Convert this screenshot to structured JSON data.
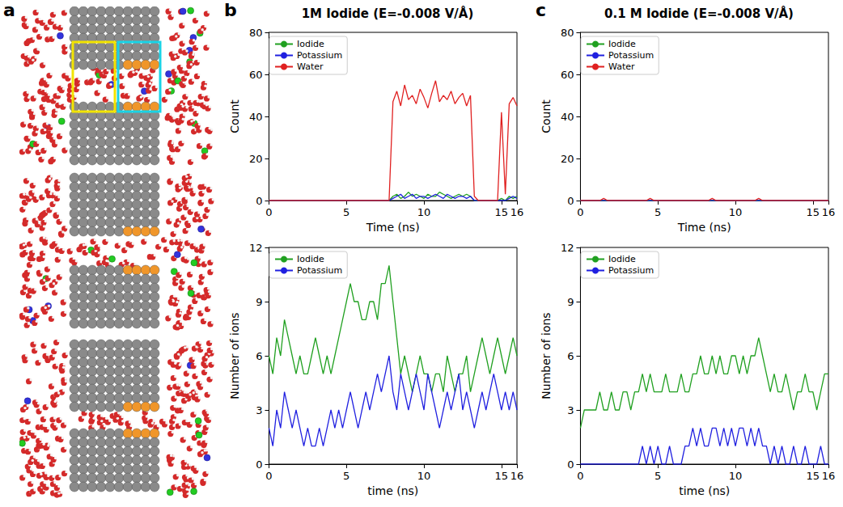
{
  "snapshots": {
    "label": "a"
  },
  "chart_data": [
    {
      "type": "line",
      "panel_label": "b",
      "title": "1M Iodide (E=-0.008 V/Å)",
      "xlabel": "Time (ns)",
      "ylabel": "Count",
      "xlim": [
        0,
        16
      ],
      "ylim": [
        0,
        80
      ],
      "xticks": [
        0,
        5,
        10,
        15
      ],
      "yticks": [
        0,
        20,
        40,
        60,
        80
      ],
      "grid": false,
      "legend": "upper left",
      "line_style": "solid",
      "x": [
        0,
        0.25,
        0.5,
        0.75,
        1,
        1.25,
        1.5,
        1.75,
        2,
        2.25,
        2.5,
        2.75,
        3,
        3.25,
        3.5,
        3.75,
        4,
        4.25,
        4.5,
        4.75,
        5,
        5.25,
        5.5,
        5.75,
        6,
        6.25,
        6.5,
        6.75,
        7,
        7.25,
        7.5,
        7.75,
        8,
        8.25,
        8.5,
        8.75,
        9,
        9.25,
        9.5,
        9.75,
        10,
        10.25,
        10.5,
        10.75,
        11,
        11.25,
        11.5,
        11.75,
        12,
        12.25,
        12.5,
        12.75,
        13,
        13.25,
        13.5,
        13.75,
        14,
        14.25,
        14.5,
        14.75,
        15,
        15.25,
        15.5,
        15.75,
        16
      ],
      "series": [
        {
          "name": "Iodide",
          "color": "#20a020",
          "values": [
            0,
            0,
            0,
            0,
            0,
            0,
            0,
            0,
            0,
            0,
            0,
            0,
            0,
            0,
            0,
            0,
            0,
            0,
            0,
            0,
            0,
            0,
            0,
            0,
            0,
            0,
            0,
            0,
            0,
            0,
            0,
            0,
            2,
            3,
            1,
            2,
            4,
            2,
            3,
            2,
            1,
            3,
            2,
            2,
            4,
            3,
            2,
            1,
            2,
            3,
            2,
            3,
            2,
            0,
            0,
            0,
            0,
            0,
            0,
            0,
            1,
            0,
            2,
            1,
            2
          ]
        },
        {
          "name": "Potassium",
          "color": "#2020e0",
          "values": [
            0,
            0,
            0,
            0,
            0,
            0,
            0,
            0,
            0,
            0,
            0,
            0,
            0,
            0,
            0,
            0,
            0,
            0,
            0,
            0,
            0,
            0,
            0,
            0,
            0,
            0,
            0,
            0,
            0,
            0,
            0,
            0,
            1,
            2,
            3,
            1,
            2,
            3,
            1,
            2,
            2,
            1,
            2,
            3,
            2,
            1,
            3,
            2,
            1,
            2,
            2,
            1,
            2,
            0,
            0,
            0,
            0,
            0,
            0,
            0,
            0,
            0,
            1,
            2,
            1
          ]
        },
        {
          "name": "Water",
          "color": "#e02020",
          "values": [
            0,
            0,
            0,
            0,
            0,
            0,
            0,
            0,
            0,
            0,
            0,
            0,
            0,
            0,
            0,
            0,
            0,
            0,
            0,
            0,
            0,
            0,
            0,
            0,
            0,
            0,
            0,
            0,
            0,
            0,
            0,
            0,
            47,
            52,
            45,
            55,
            48,
            50,
            46,
            53,
            49,
            44,
            51,
            57,
            47,
            50,
            48,
            52,
            46,
            49,
            51,
            45,
            50,
            2,
            0,
            0,
            0,
            0,
            0,
            0,
            42,
            3,
            46,
            49,
            45
          ]
        }
      ]
    },
    {
      "type": "line",
      "xlabel": "time (ns)",
      "ylabel": "Number of ions",
      "xlim": [
        0,
        16
      ],
      "ylim": [
        0,
        12
      ],
      "xticks": [
        0,
        5,
        10,
        15
      ],
      "yticks": [
        0,
        3,
        6,
        9,
        12
      ],
      "grid": false,
      "legend": "upper left",
      "line_style": "solid",
      "x": [
        0,
        0.25,
        0.5,
        0.75,
        1,
        1.25,
        1.5,
        1.75,
        2,
        2.25,
        2.5,
        2.75,
        3,
        3.25,
        3.5,
        3.75,
        4,
        4.25,
        4.5,
        4.75,
        5,
        5.25,
        5.5,
        5.75,
        6,
        6.25,
        6.5,
        6.75,
        7,
        7.25,
        7.5,
        7.75,
        8,
        8.25,
        8.5,
        8.75,
        9,
        9.25,
        9.5,
        9.75,
        10,
        10.25,
        10.5,
        10.75,
        11,
        11.25,
        11.5,
        11.75,
        12,
        12.25,
        12.5,
        12.75,
        13,
        13.25,
        13.5,
        13.75,
        14,
        14.25,
        14.5,
        14.75,
        15,
        15.25,
        15.5,
        15.75,
        16
      ],
      "series": [
        {
          "name": "Iodide",
          "color": "#20a020",
          "values": [
            6,
            5,
            7,
            6,
            8,
            7,
            6,
            5,
            6,
            5,
            5,
            6,
            7,
            6,
            5,
            6,
            5,
            6,
            7,
            8,
            9,
            10,
            9,
            9,
            8,
            8,
            9,
            9,
            8,
            10,
            10,
            11,
            9,
            7,
            5,
            6,
            5,
            4,
            5,
            6,
            5,
            5,
            4,
            5,
            5,
            4,
            6,
            5,
            4,
            5,
            5,
            6,
            4,
            5,
            6,
            7,
            6,
            5,
            6,
            7,
            6,
            5,
            6,
            7,
            6
          ]
        },
        {
          "name": "Potassium",
          "color": "#2020e0",
          "values": [
            2,
            1,
            3,
            2,
            4,
            3,
            2,
            3,
            2,
            1,
            2,
            1,
            1,
            2,
            1,
            2,
            3,
            2,
            3,
            2,
            3,
            4,
            3,
            2,
            3,
            4,
            3,
            4,
            5,
            4,
            5,
            6,
            4,
            3,
            5,
            4,
            3,
            4,
            5,
            4,
            3,
            5,
            4,
            3,
            2,
            3,
            4,
            3,
            4,
            5,
            3,
            4,
            3,
            2,
            3,
            4,
            3,
            4,
            5,
            4,
            3,
            4,
            3,
            4,
            3
          ]
        }
      ]
    },
    {
      "type": "line",
      "panel_label": "c",
      "title": "0.1 M Iodide (E=-0.008 V/Å)",
      "xlabel": "Time (ns)",
      "ylabel": "Count",
      "xlim": [
        0,
        16
      ],
      "ylim": [
        0,
        80
      ],
      "xticks": [
        0,
        5,
        10,
        15
      ],
      "yticks": [
        0,
        20,
        40,
        60,
        80
      ],
      "grid": false,
      "legend": "upper left",
      "line_style": "solid",
      "x": [
        0,
        0.25,
        0.5,
        0.75,
        1,
        1.25,
        1.5,
        1.75,
        2,
        2.25,
        2.5,
        2.75,
        3,
        3.25,
        3.5,
        3.75,
        4,
        4.25,
        4.5,
        4.75,
        5,
        5.25,
        5.5,
        5.75,
        6,
        6.25,
        6.5,
        6.75,
        7,
        7.25,
        7.5,
        7.75,
        8,
        8.25,
        8.5,
        8.75,
        9,
        9.25,
        9.5,
        9.75,
        10,
        10.25,
        10.5,
        10.75,
        11,
        11.25,
        11.5,
        11.75,
        12,
        12.25,
        12.5,
        12.75,
        13,
        13.25,
        13.5,
        13.75,
        14,
        14.25,
        14.5,
        14.75,
        15,
        15.25,
        15.5,
        15.75,
        16
      ],
      "series": [
        {
          "name": "Iodide",
          "color": "#20a020",
          "values": [
            0,
            0,
            0,
            0,
            0,
            0,
            0,
            0,
            0,
            0,
            0,
            0,
            0,
            0,
            0,
            0,
            0,
            0,
            0,
            0,
            0,
            0,
            0,
            0,
            0,
            0,
            0,
            0,
            0,
            0,
            0,
            0,
            0,
            0,
            0,
            0,
            0,
            0,
            0,
            0,
            0,
            0,
            0,
            0,
            0,
            0,
            0,
            0,
            0,
            0,
            0,
            0,
            0,
            0,
            0,
            0,
            0,
            0,
            0,
            0,
            0,
            0,
            0,
            0,
            0
          ]
        },
        {
          "name": "Potassium",
          "color": "#2020e0",
          "values": [
            0,
            0,
            0,
            0,
            0,
            0,
            0,
            0,
            0,
            0,
            0,
            0,
            0,
            0,
            0,
            0,
            0,
            0,
            0,
            0,
            0,
            0,
            0,
            0,
            0,
            0,
            0,
            0,
            0,
            0,
            0,
            0,
            0,
            0,
            0,
            0,
            0,
            0,
            0,
            0,
            0,
            0,
            0,
            0,
            0,
            0,
            0,
            0,
            0,
            0,
            0,
            0,
            0,
            0,
            0,
            0,
            0,
            0,
            0,
            0,
            0,
            0,
            0,
            0,
            0
          ]
        },
        {
          "name": "Water",
          "color": "#e02020",
          "values": [
            0,
            0,
            0,
            0,
            0,
            0,
            1,
            0,
            0,
            0,
            0,
            0,
            0,
            0,
            0,
            0,
            0,
            0,
            1,
            0,
            0,
            0,
            0,
            0,
            0,
            0,
            0,
            0,
            0,
            0,
            0,
            0,
            0,
            0,
            1,
            0,
            0,
            0,
            0,
            0,
            0,
            0,
            0,
            0,
            0,
            0,
            1,
            0,
            0,
            0,
            0,
            0,
            0,
            0,
            0,
            0,
            0,
            0,
            0,
            0,
            0,
            0,
            0,
            0,
            0
          ]
        }
      ]
    },
    {
      "type": "line",
      "xlabel": "time (ns)",
      "ylabel": "Number of ions",
      "xlim": [
        0,
        16
      ],
      "ylim": [
        0,
        12
      ],
      "xticks": [
        0,
        5,
        10,
        15
      ],
      "yticks": [
        0,
        3,
        6,
        9,
        12
      ],
      "grid": false,
      "legend": "upper left",
      "line_style": "solid",
      "x": [
        0,
        0.25,
        0.5,
        0.75,
        1,
        1.25,
        1.5,
        1.75,
        2,
        2.25,
        2.5,
        2.75,
        3,
        3.25,
        3.5,
        3.75,
        4,
        4.25,
        4.5,
        4.75,
        5,
        5.25,
        5.5,
        5.75,
        6,
        6.25,
        6.5,
        6.75,
        7,
        7.25,
        7.5,
        7.75,
        8,
        8.25,
        8.5,
        8.75,
        9,
        9.25,
        9.5,
        9.75,
        10,
        10.25,
        10.5,
        10.75,
        11,
        11.25,
        11.5,
        11.75,
        12,
        12.25,
        12.5,
        12.75,
        13,
        13.25,
        13.5,
        13.75,
        14,
        14.25,
        14.5,
        14.75,
        15,
        15.25,
        15.5,
        15.75,
        16
      ],
      "series": [
        {
          "name": "Iodide",
          "color": "#20a020",
          "values": [
            2,
            3,
            3,
            3,
            3,
            4,
            3,
            3,
            4,
            3,
            3,
            4,
            4,
            3,
            4,
            4,
            5,
            4,
            5,
            4,
            4,
            4,
            5,
            4,
            4,
            4,
            5,
            4,
            4,
            5,
            5,
            6,
            5,
            5,
            6,
            5,
            6,
            5,
            5,
            6,
            6,
            5,
            6,
            5,
            6,
            6,
            7,
            6,
            5,
            4,
            5,
            4,
            4,
            5,
            4,
            3,
            4,
            4,
            5,
            4,
            4,
            3,
            4,
            5,
            5
          ]
        },
        {
          "name": "Potassium",
          "color": "#2020e0",
          "values": [
            0,
            0,
            0,
            0,
            0,
            0,
            0,
            0,
            0,
            0,
            0,
            0,
            0,
            0,
            0,
            0,
            1,
            0,
            1,
            0,
            1,
            0,
            0,
            1,
            0,
            0,
            0,
            1,
            1,
            2,
            1,
            2,
            1,
            1,
            2,
            2,
            1,
            2,
            1,
            2,
            1,
            2,
            2,
            1,
            2,
            1,
            2,
            1,
            1,
            0,
            1,
            0,
            1,
            0,
            0,
            1,
            0,
            0,
            1,
            0,
            0,
            0,
            1,
            0,
            0
          ]
        }
      ]
    }
  ]
}
